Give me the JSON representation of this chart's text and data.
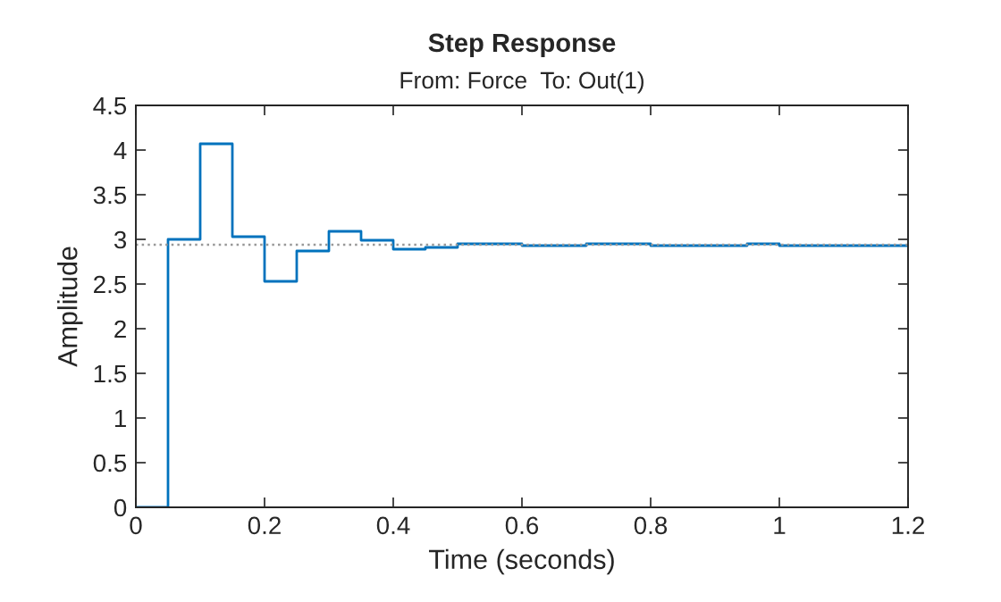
{
  "chart_data": {
    "type": "step",
    "title": "Step Response",
    "subtitle": "From: Force  To: Out(1)",
    "xlabel": "Time (seconds)",
    "ylabel": "Amplitude",
    "x": [
      0,
      0.05,
      0.1,
      0.15,
      0.2,
      0.25,
      0.3,
      0.35,
      0.4,
      0.45,
      0.5,
      0.55,
      0.6,
      0.65,
      0.7,
      0.75,
      0.8,
      0.85,
      0.9,
      0.95,
      1.0,
      1.05,
      1.1,
      1.15,
      1.2
    ],
    "series": [
      {
        "color": "#0072bd",
        "values": [
          0,
          3.0,
          4.07,
          3.03,
          2.53,
          2.87,
          3.09,
          2.99,
          2.89,
          2.91,
          2.95,
          2.95,
          2.93,
          2.93,
          2.95,
          2.95,
          2.93,
          2.93,
          2.93,
          2.95,
          2.93,
          2.93,
          2.93,
          2.93,
          2.93
        ]
      }
    ],
    "ref_lines": [
      {
        "axis": "y",
        "value": 2.94,
        "color": "#999999",
        "line_style": "dotted"
      }
    ],
    "xlim": [
      0,
      1.2
    ],
    "xticks": [
      0,
      0.2,
      0.4,
      0.6,
      0.8,
      1,
      1.2
    ],
    "ylim": [
      0,
      4.5
    ],
    "yticks": [
      0,
      0.5,
      1,
      1.5,
      2,
      2.5,
      3,
      3.5,
      4,
      4.5
    ],
    "grid": false,
    "legend": false
  }
}
